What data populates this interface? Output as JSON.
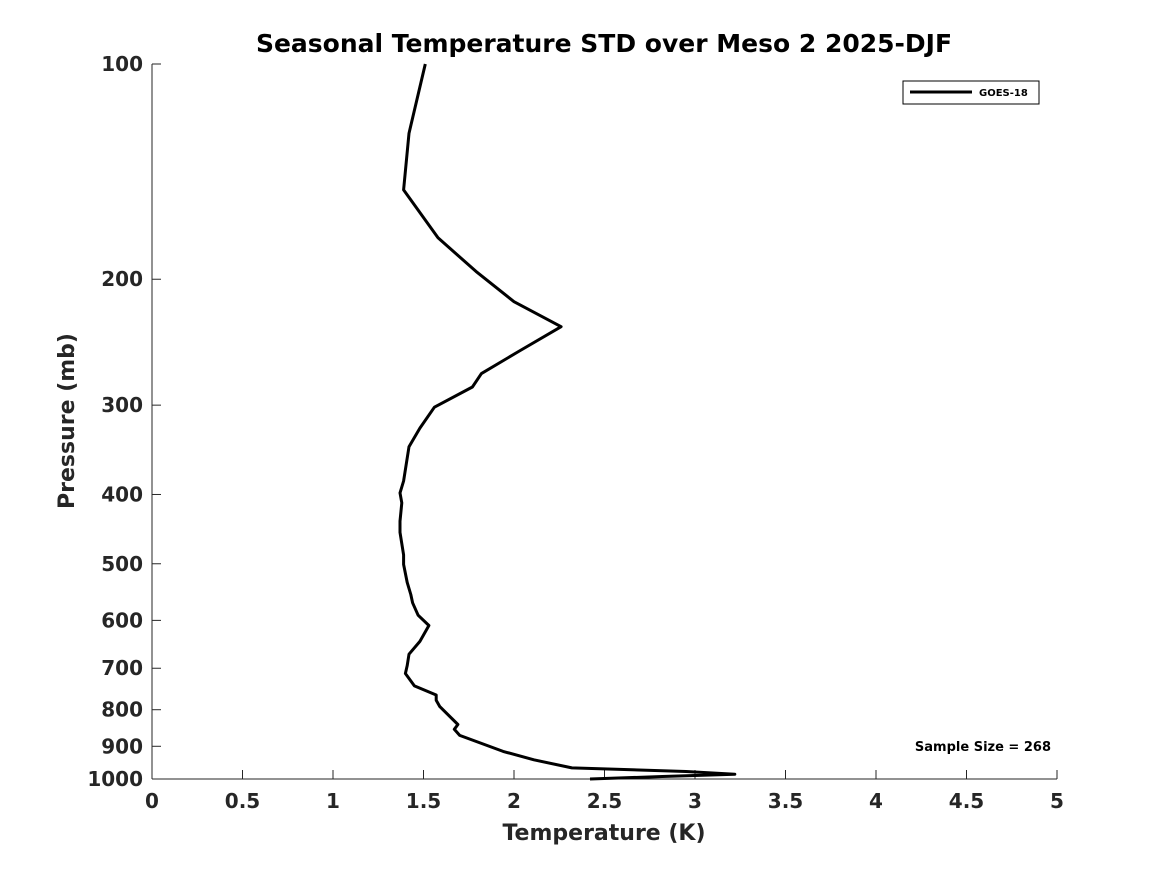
{
  "chart_data": {
    "type": "line",
    "title": "Seasonal Temperature STD over Meso 2  2025-DJF",
    "xlabel": "Temperature (K)",
    "ylabel": "Pressure (mb)",
    "xlim": [
      0,
      5
    ],
    "ylim": [
      100,
      1000
    ],
    "yscale": "log",
    "y_reversed": true,
    "grid": false,
    "legend_position": "top-right",
    "x_ticks": [
      0,
      0.5,
      1,
      1.5,
      2,
      2.5,
      3,
      3.5,
      4,
      4.5,
      5
    ],
    "x_tick_labels": [
      "0",
      "0.5",
      "1",
      "1.5",
      "2",
      "2.5",
      "3",
      "3.5",
      "4",
      "4.5",
      "5"
    ],
    "y_ticks": [
      100,
      200,
      300,
      400,
      500,
      600,
      700,
      800,
      900,
      1000
    ],
    "y_tick_labels": [
      "100",
      "200",
      "300",
      "400",
      "500",
      "600",
      "700",
      "800",
      "900",
      "1000"
    ],
    "series": [
      {
        "name": "GOES-18",
        "color": "#000000",
        "points": [
          [
            1.51,
            100
          ],
          [
            1.42,
            125
          ],
          [
            1.39,
            150
          ],
          [
            1.58,
            175
          ],
          [
            1.79,
            195
          ],
          [
            2.0,
            215
          ],
          [
            2.26,
            233
          ],
          [
            2.03,
            252
          ],
          [
            1.82,
            271
          ],
          [
            1.77,
            283
          ],
          [
            1.56,
            302
          ],
          [
            1.48,
            323
          ],
          [
            1.42,
            343
          ],
          [
            1.39,
            383
          ],
          [
            1.37,
            398
          ],
          [
            1.38,
            411
          ],
          [
            1.37,
            436
          ],
          [
            1.37,
            452
          ],
          [
            1.39,
            486
          ],
          [
            1.39,
            501
          ],
          [
            1.41,
            531
          ],
          [
            1.43,
            552
          ],
          [
            1.44,
            567
          ],
          [
            1.47,
            590
          ],
          [
            1.53,
            610
          ],
          [
            1.48,
            642
          ],
          [
            1.42,
            669
          ],
          [
            1.41,
            694
          ],
          [
            1.4,
            712
          ],
          [
            1.45,
            741
          ],
          [
            1.57,
            763
          ],
          [
            1.57,
            776
          ],
          [
            1.59,
            792
          ],
          [
            1.69,
            839
          ],
          [
            1.67,
            852
          ],
          [
            1.7,
            869
          ],
          [
            1.94,
            915
          ],
          [
            2.11,
            940
          ],
          [
            2.32,
            965
          ],
          [
            2.95,
            976
          ],
          [
            3.22,
            985
          ],
          [
            2.82,
            992
          ],
          [
            2.42,
            1000
          ]
        ]
      }
    ],
    "annotation": "Sample Size = 268"
  }
}
